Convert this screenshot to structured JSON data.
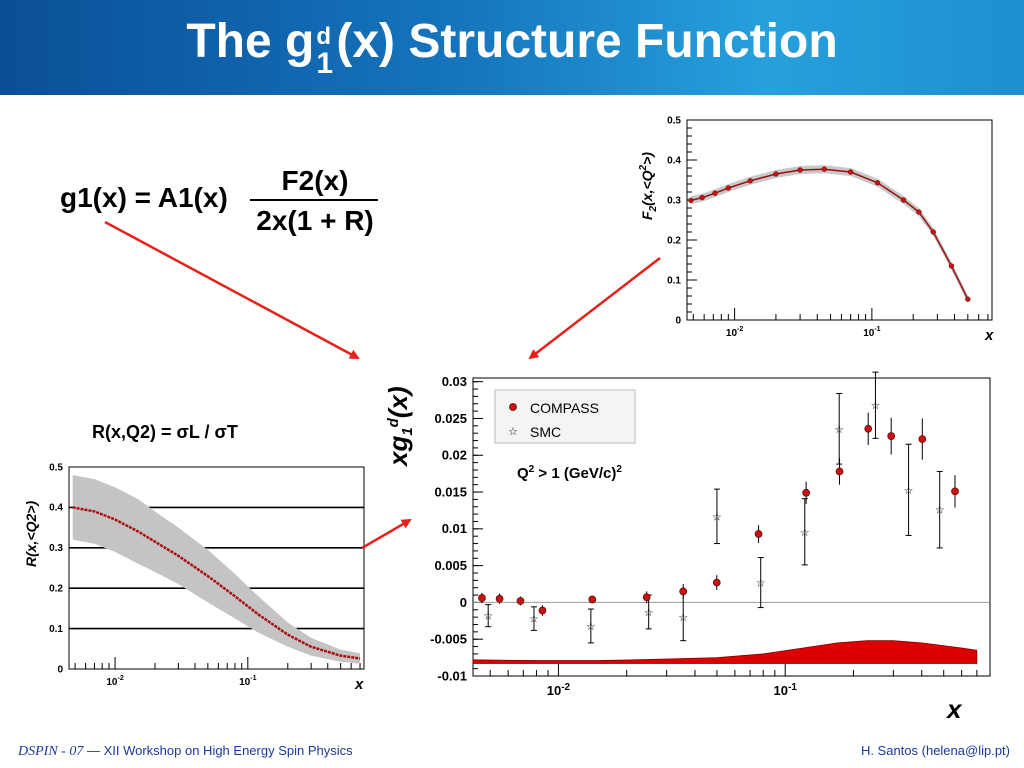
{
  "slide": {
    "title_prefix": "The g",
    "title_sup": "d",
    "title_sub": "1",
    "title_suffix": "(x) Structure Function",
    "formula_g1_lhs": "g1(x) = A1(x)",
    "formula_g1_num": "F2(x)",
    "formula_g1_den": "2x(1 + R)",
    "formula_R_text": "R(x,Q2) = σL / σT",
    "annotation_q2": "Q2 > 1 (GeV/c)2",
    "footer_conf_name": "DSPIN - 07",
    "footer_conf_dash": "—",
    "footer_conf_title": "XII Workshop on High Energy Spin Physics",
    "footer_author": "H. Santos  (helena@lip.pt)"
  },
  "colors": {
    "header_gradient": [
      "#0a4f97",
      "#27a0dc"
    ],
    "arrow": "#e8201a",
    "compass": "#cc1111",
    "band": "#c4c4c4",
    "systematic_band": "#dd0000"
  },
  "chart_data": [
    {
      "id": "F2",
      "type": "line",
      "xscale": "log",
      "xlim": [
        0.0045,
        0.75
      ],
      "ylim": [
        0,
        0.5
      ],
      "yticks": [
        "0",
        "0.1",
        "0.2",
        "0.3",
        "0.4",
        "0.5"
      ],
      "xticks": [
        "10-2",
        "10-1"
      ],
      "xlabel": "x",
      "ylabel": "F2(x,<Q2>)",
      "x": [
        0.0048,
        0.0058,
        0.0072,
        0.009,
        0.013,
        0.02,
        0.03,
        0.045,
        0.07,
        0.11,
        0.17,
        0.22,
        0.28,
        0.38,
        0.5
      ],
      "y": [
        0.299,
        0.306,
        0.317,
        0.33,
        0.348,
        0.365,
        0.375,
        0.377,
        0.37,
        0.343,
        0.3,
        0.27,
        0.22,
        0.135,
        0.052
      ]
    },
    {
      "id": "R",
      "type": "line",
      "xscale": "log",
      "xlim": [
        0.0045,
        0.75
      ],
      "ylim": [
        0,
        0.5
      ],
      "yticks": [
        "0",
        "0.1",
        "0.2",
        "0.3",
        "0.4",
        "0.5"
      ],
      "xticks": [
        "10-2",
        "10-1"
      ],
      "xlabel": "x",
      "ylabel": "R(x,<Q2>)",
      "x": [
        0.0048,
        0.007,
        0.01,
        0.015,
        0.02,
        0.03,
        0.05,
        0.08,
        0.12,
        0.2,
        0.3,
        0.5,
        0.7
      ],
      "y": [
        0.4,
        0.39,
        0.37,
        0.34,
        0.315,
        0.28,
        0.23,
        0.18,
        0.135,
        0.085,
        0.055,
        0.033,
        0.026
      ],
      "band_halfwidth": [
        0.08,
        0.08,
        0.08,
        0.08,
        0.075,
        0.07,
        0.065,
        0.055,
        0.045,
        0.03,
        0.022,
        0.015,
        0.013
      ]
    },
    {
      "id": "xg1d",
      "type": "scatter",
      "xscale": "log",
      "xlim": [
        0.0042,
        0.8
      ],
      "ylim": [
        -0.01,
        0.0305
      ],
      "yticks": [
        "-0.01",
        "-0.005",
        "0",
        "0.005",
        "0.01",
        "0.015",
        "0.02",
        "0.025",
        "0.03"
      ],
      "xticks": [
        "10-2",
        "10-1"
      ],
      "xlabel": "x",
      "ylabel": "xg1d(x)",
      "series": [
        {
          "name": "COMPASS",
          "x": [
            0.0046,
            0.0055,
            0.0068,
            0.0085,
            0.0141,
            0.0245,
            0.0355,
            0.0499,
            0.0763,
            0.1237,
            0.1736,
            0.2323,
            0.2933,
            0.4023,
            0.5608
          ],
          "y": [
            0.0006,
            0.0005,
            0.0002,
            -0.0011,
            0.0004,
            0.0007,
            0.0015,
            0.0027,
            0.0093,
            0.0149,
            0.0178,
            0.0236,
            0.0226,
            0.0222,
            0.0151
          ],
          "err": [
            0.0007,
            0.0007,
            0.0006,
            0.0007,
            0.0005,
            0.0008,
            0.001,
            0.001,
            0.0012,
            0.0015,
            0.0018,
            0.0022,
            0.0025,
            0.0028,
            0.0022
          ]
        },
        {
          "name": "SMC",
          "x": [
            0.0049,
            0.0078,
            0.0139,
            0.025,
            0.0355,
            0.05,
            0.078,
            0.122,
            0.173,
            0.25,
            0.35,
            0.48
          ],
          "y": [
            -0.0018,
            -0.0022,
            -0.0032,
            -0.0013,
            -0.002,
            0.0117,
            0.0027,
            0.0096,
            0.0236,
            0.0268,
            0.0153,
            0.0126
          ],
          "err": [
            0.0015,
            0.0016,
            0.0023,
            0.0023,
            0.0032,
            0.0037,
            0.0034,
            0.0045,
            0.0048,
            0.0045,
            0.0062,
            0.0052
          ]
        }
      ],
      "systematics": {
        "x": [
          0.0042,
          0.008,
          0.015,
          0.03,
          0.05,
          0.08,
          0.12,
          0.17,
          0.23,
          0.3,
          0.4,
          0.6,
          0.7
        ],
        "top": [
          -0.0078,
          -0.0079,
          -0.0079,
          -0.0077,
          -0.0075,
          -0.007,
          -0.0062,
          -0.0055,
          -0.0052,
          -0.0052,
          -0.0055,
          -0.0062,
          -0.0065
        ],
        "bottom": [
          -0.0083,
          -0.0083,
          -0.0083,
          -0.0083,
          -0.0083,
          -0.0083,
          -0.0083,
          -0.0083,
          -0.0083,
          -0.0083,
          -0.0083,
          -0.0083,
          -0.0083
        ]
      }
    }
  ]
}
